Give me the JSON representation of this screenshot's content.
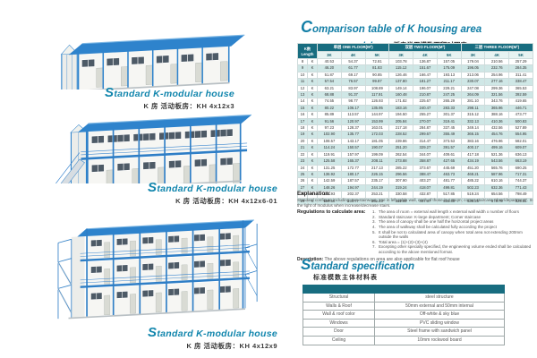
{
  "accent_colors": {
    "heading_teal": "#127ea6",
    "table_header_teal": "#186d80",
    "row_alt_teal": "#cfe7e6",
    "building_blue": "#2e7ec6"
  },
  "left": {
    "buildings": [
      {
        "caption_en": "tandard  K-modular  house",
        "dropcap": "S",
        "caption_cn": "K 房 活动板房：KH 4x12x3",
        "floors": 1
      },
      {
        "caption_en": "tandard  K-modular  house",
        "dropcap": "S",
        "caption_cn": "K 房 活动板房：KH 4x12x6-01",
        "floors": 2
      },
      {
        "caption_en": "tandard  K-modular  house",
        "dropcap": "S",
        "caption_cn": "K 房 活动板房：KH 4x12x9",
        "floors": 3
      }
    ]
  },
  "comparison": {
    "dropcap": "C",
    "title_line1": "omparison table of K housing area",
    "title_line2_en": "common modulus:",
    "title_line2_cn": "K板房常用模数面积对照表",
    "table": {
      "corner": "K数 Length",
      "unit_label": "K",
      "groups": [
        "单层 ONE FLOOR(M²)",
        "双层 TWO FLOOR(M²)",
        "三层 THREE FLOOR(M²)"
      ],
      "subcols": [
        "3K",
        "4K",
        "5K"
      ],
      "rows": [
        {
          "n": "8",
          "v": [
            "40.53",
            "54.37",
            "72.81",
            "103.78",
            "136.87",
            "157.05",
            "179.04",
            "210.56",
            "257.29"
          ]
        },
        {
          "n": "9",
          "v": [
            "46.20",
            "61.77",
            "81.83",
            "115.12",
            "151.67",
            "175.09",
            "196.05",
            "232.76",
            "284.35"
          ]
        },
        {
          "n": "10",
          "v": [
            "51.87",
            "69.17",
            "90.85",
            "126.46",
            "166.47",
            "193.13",
            "213.06",
            "254.96",
            "311.41"
          ]
        },
        {
          "n": "11",
          "v": [
            "57.54",
            "76.57",
            "99.87",
            "137.80",
            "181.27",
            "211.17",
            "230.07",
            "277.16",
            "338.47"
          ]
        },
        {
          "n": "12",
          "v": [
            "63.21",
            "83.97",
            "108.89",
            "149.14",
            "196.07",
            "229.21",
            "247.08",
            "299.36",
            "365.53"
          ]
        },
        {
          "n": "13",
          "v": [
            "68.88",
            "91.37",
            "117.91",
            "160.48",
            "210.87",
            "247.25",
            "264.09",
            "321.56",
            "392.59"
          ]
        },
        {
          "n": "14",
          "v": [
            "74.55",
            "98.77",
            "126.93",
            "171.82",
            "225.67",
            "265.29",
            "281.10",
            "343.76",
            "419.65"
          ]
        },
        {
          "n": "15",
          "v": [
            "80.22",
            "106.17",
            "135.95",
            "183.16",
            "240.47",
            "283.33",
            "298.11",
            "365.96",
            "446.71"
          ]
        },
        {
          "n": "16",
          "v": [
            "85.89",
            "113.57",
            "144.97",
            "194.50",
            "255.27",
            "301.37",
            "315.12",
            "388.16",
            "473.77"
          ]
        },
        {
          "n": "17",
          "v": [
            "91.56",
            "120.97",
            "153.99",
            "205.84",
            "270.07",
            "319.41",
            "332.13",
            "410.36",
            "500.83"
          ]
        },
        {
          "n": "18",
          "v": [
            "97.23",
            "128.37",
            "163.01",
            "217.18",
            "284.87",
            "337.45",
            "349.14",
            "432.56",
            "527.89"
          ]
        },
        {
          "n": "19",
          "v": [
            "102.90",
            "135.77",
            "172.03",
            "228.52",
            "299.67",
            "355.49",
            "366.15",
            "454.76",
            "554.95"
          ]
        },
        {
          "n": "20",
          "v": [
            "108.57",
            "143.17",
            "181.05",
            "239.86",
            "314.47",
            "373.53",
            "383.16",
            "476.96",
            "582.01"
          ]
        },
        {
          "n": "21",
          "v": [
            "114.24",
            "150.57",
            "190.07",
            "251.20",
            "329.27",
            "391.57",
            "400.17",
            "499.16",
            "609.07"
          ]
        },
        {
          "n": "22",
          "v": [
            "119.91",
            "157.97",
            "199.09",
            "262.54",
            "344.07",
            "409.61",
            "417.18",
            "521.36",
            "636.13"
          ]
        },
        {
          "n": "23",
          "v": [
            "125.58",
            "165.37",
            "208.11",
            "273.88",
            "358.87",
            "427.65",
            "434.19",
            "543.56",
            "663.19"
          ]
        },
        {
          "n": "24",
          "v": [
            "131.25",
            "172.77",
            "217.13",
            "285.22",
            "373.67",
            "445.69",
            "451.20",
            "565.76",
            "690.25"
          ]
        },
        {
          "n": "25",
          "v": [
            "136.92",
            "180.17",
            "226.15",
            "296.56",
            "388.47",
            "463.73",
            "468.21",
            "587.96",
            "717.31"
          ]
        },
        {
          "n": "26",
          "v": [
            "142.59",
            "187.57",
            "235.17",
            "307.90",
            "403.27",
            "481.77",
            "485.22",
            "610.16",
            "744.37"
          ]
        },
        {
          "n": "27",
          "v": [
            "148.26",
            "194.97",
            "244.19",
            "319.24",
            "418.07",
            "499.81",
            "502.23",
            "632.36",
            "771.43"
          ]
        },
        {
          "n": "28",
          "v": [
            "153.93",
            "202.37",
            "253.21",
            "330.58",
            "432.87",
            "517.85",
            "519.24",
            "654.56",
            "798.49"
          ]
        },
        {
          "n": "29",
          "v": [
            "159.60",
            "209.77",
            "262.23",
            "341.92",
            "447.67",
            "535.89",
            "536.25",
            "676.76",
            "825.55"
          ]
        }
      ]
    }
  },
  "explanation": {
    "heading": "Explanation:",
    "intro": "Standard configure including: two stairways, one in left gable wall, each of those is 4.8sqm; corner staircase \"door/department\". In the light of modulus when increase/decrease stairs.",
    "reg_label": "Regulations to calculate area:",
    "items": [
      "The area of room = external wall length x external wall width x number of floors",
      "Standard staircase: K-large department; Corner staircase",
      "The area of canopy shall be one half the horizontal project areas",
      "The area of walkway shall be calculated fully according the project",
      "It shall be not to calculated area of canopy when total area not extending 200mm outside the walls",
      "Total area = (1)+(2)+(3)+(4)",
      "Excepting other specially specified, the engineering volume ended shall be calculated according to the above mentioned format."
    ],
    "description_label": "Description:",
    "description": "The above regulations on area are also applicable for flat roof house"
  },
  "spec": {
    "dropcap": "S",
    "title": "tandard specification",
    "subtitle_cn": "标准模数主体材料表",
    "rows": [
      [
        "Structural",
        "steel structure"
      ],
      [
        "Walls & Roof",
        "50mm external and 50mm internal"
      ],
      [
        "Wall & roof color",
        "Off-white & sky blue"
      ],
      [
        "Windows",
        "PVC sliding window"
      ],
      [
        "Door",
        "Steel frame with sandwich panel"
      ],
      [
        "Ceiling",
        "10mm rockwool board"
      ]
    ]
  }
}
